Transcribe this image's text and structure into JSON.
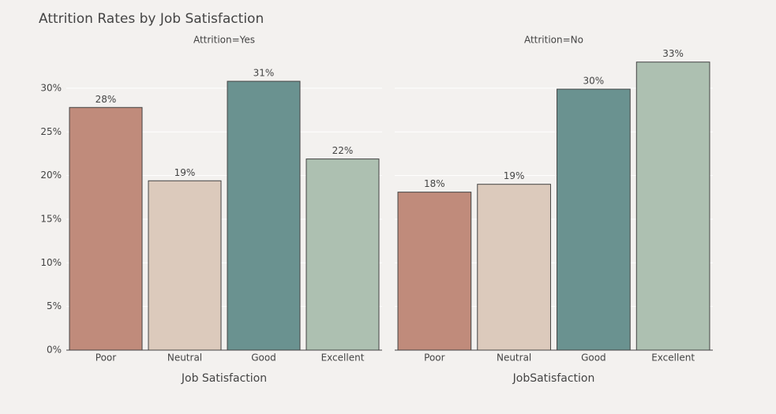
{
  "title": "Attrition Rates by Job Satisfaction",
  "chart_data": [
    {
      "type": "bar",
      "title": "Attrition=Yes",
      "x_label": "Job Satisfaction",
      "categories": [
        "Poor",
        "Neutral",
        "Good",
        "Excellent"
      ],
      "values": [
        27.8,
        19.4,
        30.8,
        21.9
      ],
      "value_labels": [
        "28%",
        "19%",
        "31%",
        "22%"
      ],
      "colors": [
        "#c08b7b",
        "#dccabc",
        "#6a9290",
        "#adc0b1"
      ],
      "ylim": [
        0,
        34.6
      ],
      "yticks": [
        {
          "value": 0,
          "label": "0%"
        },
        {
          "value": 5,
          "label": "5%"
        },
        {
          "value": 10,
          "label": "10%"
        },
        {
          "value": 15,
          "label": "15%"
        },
        {
          "value": 20,
          "label": "20%"
        },
        {
          "value": 25,
          "label": "25%"
        },
        {
          "value": 30,
          "label": "30%"
        }
      ],
      "grid": true
    },
    {
      "type": "bar",
      "title": "Attrition=No",
      "x_label": "JobSatisfaction",
      "categories": [
        "Poor",
        "Neutral",
        "Good",
        "Excellent"
      ],
      "values": [
        18.1,
        19.0,
        29.9,
        33.0
      ],
      "value_labels": [
        "18%",
        "19%",
        "30%",
        "33%"
      ],
      "colors": [
        "#c08b7b",
        "#dccabc",
        "#6a9290",
        "#adc0b1"
      ],
      "ylim": [
        0,
        34.6
      ],
      "grid": true
    }
  ]
}
